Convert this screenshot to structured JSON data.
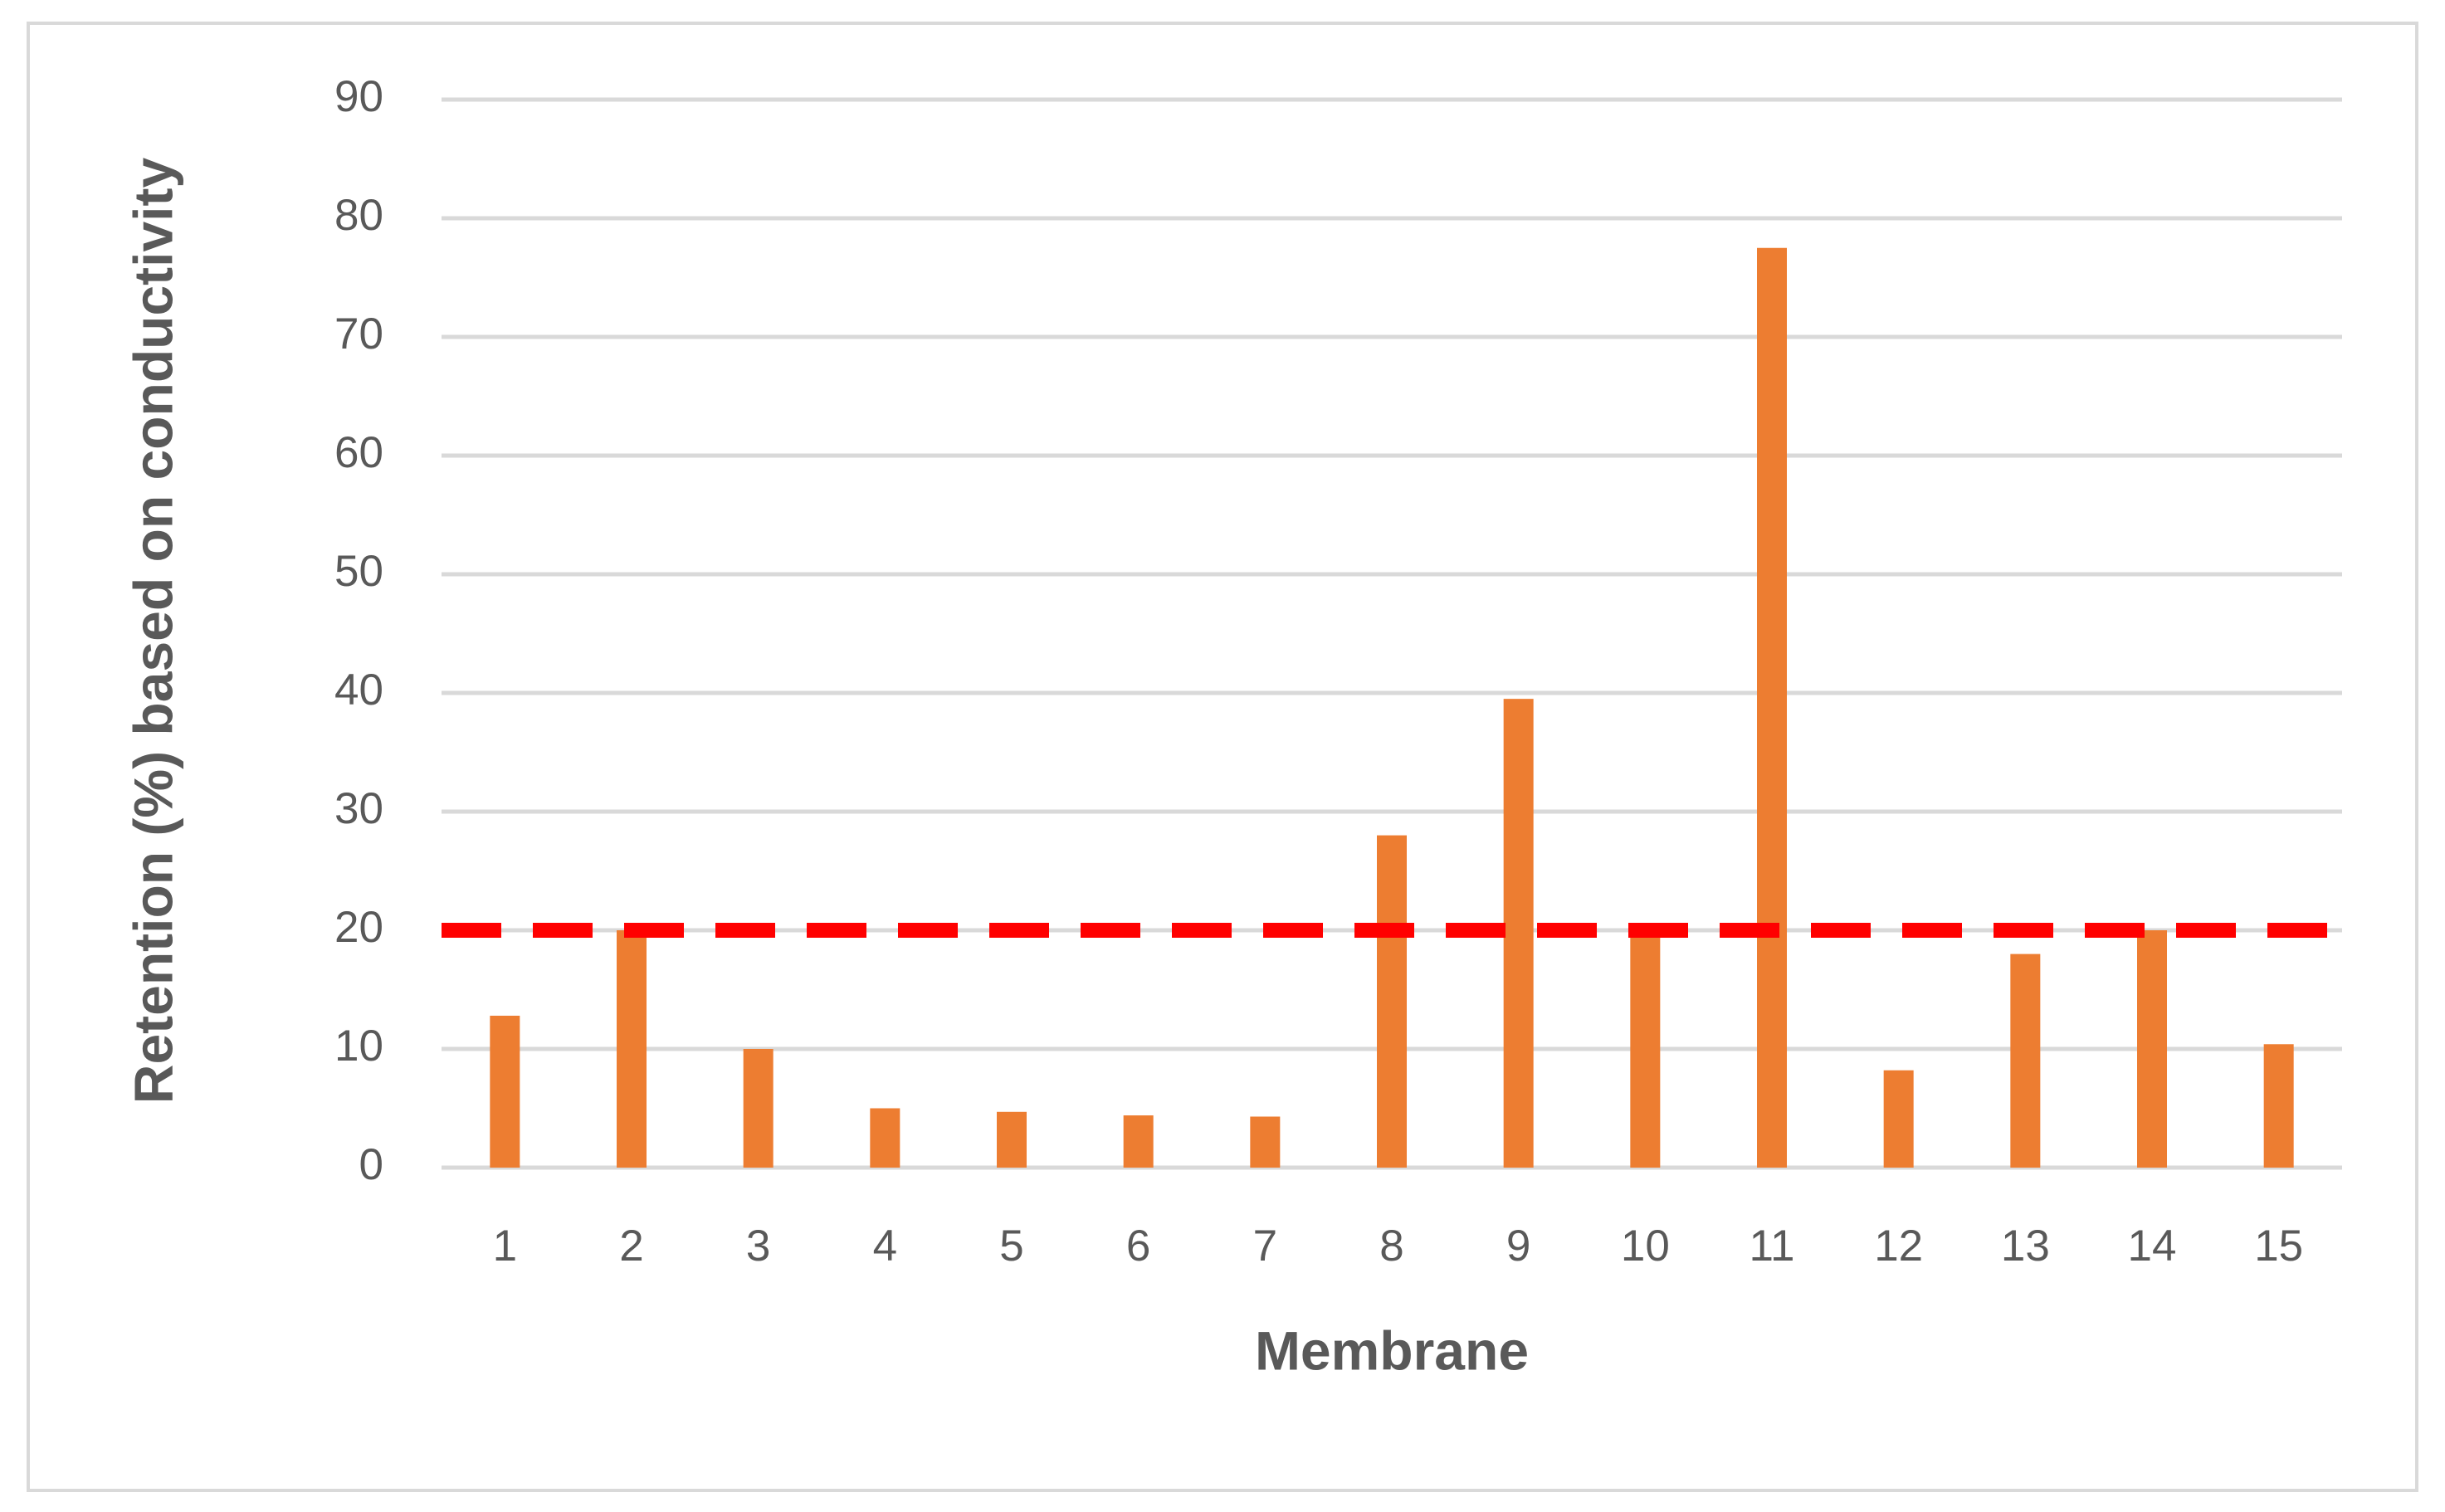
{
  "chart_data": {
    "type": "bar",
    "x_label": "Membrane",
    "y_label": "Retention (%) based on conductivity",
    "categories": [
      "1",
      "2",
      "3",
      "4",
      "5",
      "6",
      "7",
      "8",
      "9",
      "10",
      "11",
      "12",
      "13",
      "14",
      "15"
    ],
    "values": [
      12.8,
      20,
      10,
      5,
      4.7,
      4.4,
      4.3,
      28,
      39.5,
      20,
      77.5,
      8.2,
      18,
      20,
      10.4
    ],
    "color": "#ed7d31",
    "reference_line": 20,
    "reference_color": "#ff0000",
    "ylim": [
      0,
      90
    ],
    "yticks": [
      0,
      10,
      20,
      30,
      40,
      50,
      60,
      70,
      80,
      90
    ],
    "grid": true
  }
}
